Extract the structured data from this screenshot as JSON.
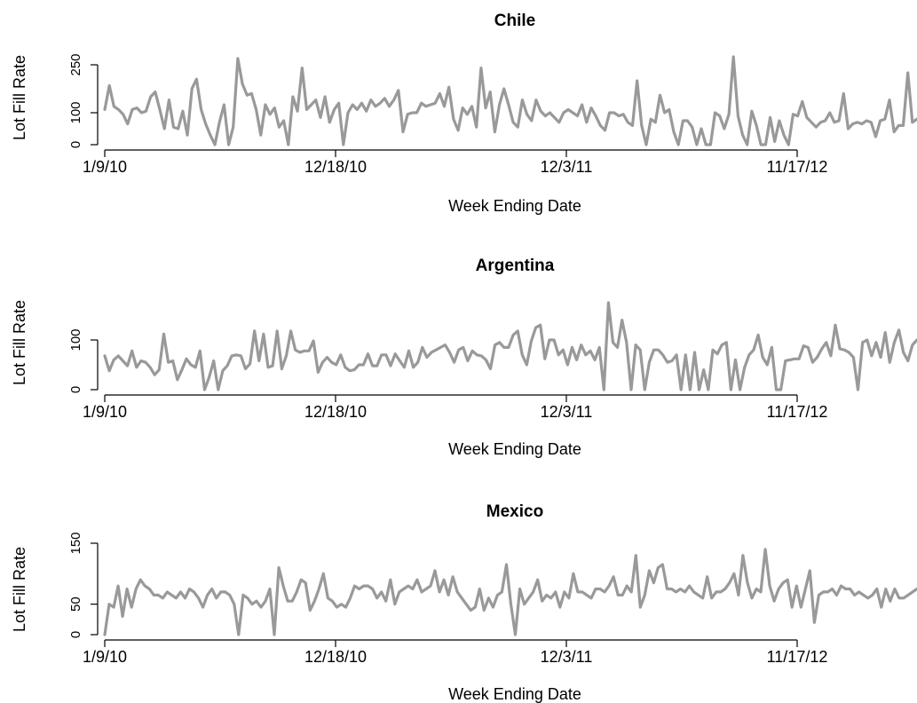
{
  "chart_data": [
    {
      "type": "line",
      "title": "Chile",
      "xlabel": "Week Ending Date",
      "ylabel": "Lot Fill Rate",
      "x_tick_labels": [
        "1/9/10",
        "12/18/10",
        "12/3/11",
        "11/17/12"
      ],
      "y_ticks": [
        0,
        100,
        250
      ],
      "ylim": [
        0,
        250
      ],
      "series": [
        {
          "color": "#999999",
          "values": [
            110,
            185,
            120,
            110,
            95,
            65,
            110,
            115,
            100,
            105,
            150,
            165,
            110,
            50,
            140,
            55,
            50,
            105,
            30,
            175,
            205,
            110,
            65,
            30,
            0,
            70,
            125,
            0,
            55,
            270,
            190,
            155,
            160,
            110,
            30,
            125,
            95,
            115,
            55,
            75,
            0,
            150,
            105,
            240,
            110,
            125,
            140,
            85,
            150,
            70,
            110,
            130,
            0,
            100,
            125,
            110,
            130,
            105,
            140,
            120,
            130,
            145,
            120,
            140,
            170,
            40,
            95,
            100,
            100,
            130,
            120,
            125,
            130,
            160,
            120,
            180,
            80,
            45,
            115,
            95,
            120,
            55,
            240,
            115,
            165,
            40,
            125,
            175,
            125,
            70,
            55,
            140,
            95,
            75,
            140,
            105,
            90,
            100,
            85,
            70,
            100,
            110,
            100,
            90,
            125,
            70,
            115,
            90,
            60,
            45,
            100,
            100,
            90,
            95,
            70,
            60,
            200,
            60,
            0,
            80,
            70,
            155,
            100,
            110,
            40,
            0,
            75,
            75,
            55,
            0,
            50,
            0,
            0,
            100,
            90,
            50,
            95,
            275,
            90,
            30,
            0,
            105,
            60,
            0,
            0,
            85,
            10,
            75,
            30,
            0,
            95,
            90,
            135,
            85,
            70,
            55,
            70,
            75,
            100,
            70,
            75,
            160,
            50,
            65,
            70,
            65,
            75,
            70,
            25,
            75,
            80,
            140,
            40,
            60,
            60,
            225,
            70,
            80
          ]
        }
      ]
    },
    {
      "type": "line",
      "title": "Argentina",
      "xlabel": "Week Ending Date",
      "ylabel": "Lot Fill Rate",
      "x_tick_labels": [
        "1/9/10",
        "12/18/10",
        "12/3/11",
        "11/17/12"
      ],
      "y_ticks": [
        0,
        100
      ],
      "ylim": [
        0,
        150
      ],
      "series": [
        {
          "color": "#999999",
          "values": [
            68,
            38,
            60,
            68,
            58,
            48,
            78,
            45,
            58,
            55,
            45,
            30,
            40,
            112,
            55,
            58,
            20,
            40,
            62,
            50,
            45,
            78,
            0,
            25,
            58,
            0,
            38,
            48,
            68,
            70,
            68,
            42,
            52,
            118,
            58,
            112,
            45,
            48,
            118,
            42,
            68,
            118,
            80,
            75,
            78,
            78,
            98,
            35,
            55,
            65,
            55,
            50,
            70,
            45,
            38,
            40,
            50,
            50,
            72,
            48,
            48,
            70,
            70,
            48,
            72,
            58,
            45,
            78,
            45,
            55,
            85,
            65,
            75,
            80,
            85,
            90,
            75,
            55,
            80,
            85,
            58,
            78,
            70,
            68,
            60,
            42,
            90,
            95,
            85,
            85,
            110,
            118,
            70,
            50,
            98,
            125,
            130,
            62,
            100,
            100,
            70,
            80,
            50,
            85,
            60,
            90,
            70,
            78,
            60,
            85,
            0,
            175,
            95,
            85,
            140,
            95,
            0,
            90,
            80,
            0,
            55,
            80,
            80,
            70,
            55,
            58,
            70,
            0,
            70,
            0,
            75,
            0,
            40,
            0,
            80,
            72,
            90,
            95,
            0,
            60,
            0,
            45,
            70,
            80,
            110,
            65,
            50,
            85,
            0,
            0,
            58,
            60,
            62,
            62,
            88,
            85,
            55,
            65,
            82,
            95,
            68,
            130,
            82,
            80,
            75,
            65,
            0,
            95,
            100,
            68,
            95,
            65,
            115,
            55,
            95,
            120,
            75,
            58,
            90,
            100
          ]
        }
      ]
    },
    {
      "type": "line",
      "title": "Mexico",
      "xlabel": "Week Ending Date",
      "ylabel": "Lot Fill Rate",
      "x_tick_labels": [
        "1/9/10",
        "12/18/10",
        "12/3/11",
        "11/17/12"
      ],
      "y_ticks": [
        0,
        50,
        150
      ],
      "ylim": [
        0,
        150
      ],
      "series": [
        {
          "color": "#999999",
          "values": [
            0,
            50,
            45,
            80,
            30,
            75,
            45,
            75,
            90,
            80,
            75,
            65,
            65,
            60,
            70,
            65,
            60,
            70,
            60,
            75,
            70,
            60,
            45,
            65,
            75,
            60,
            70,
            70,
            65,
            50,
            0,
            65,
            60,
            50,
            55,
            45,
            55,
            75,
            0,
            110,
            80,
            55,
            55,
            70,
            90,
            85,
            40,
            55,
            75,
            100,
            60,
            55,
            45,
            50,
            45,
            60,
            80,
            75,
            80,
            80,
            75,
            60,
            70,
            55,
            90,
            50,
            70,
            75,
            80,
            75,
            90,
            70,
            75,
            80,
            105,
            70,
            90,
            65,
            95,
            70,
            60,
            50,
            40,
            45,
            75,
            40,
            60,
            45,
            65,
            70,
            115,
            50,
            0,
            75,
            50,
            60,
            70,
            90,
            55,
            65,
            60,
            70,
            45,
            70,
            60,
            100,
            70,
            70,
            65,
            60,
            75,
            75,
            70,
            80,
            95,
            65,
            65,
            80,
            70,
            130,
            45,
            65,
            105,
            85,
            110,
            115,
            75,
            75,
            70,
            75,
            70,
            80,
            70,
            65,
            60,
            95,
            60,
            70,
            70,
            75,
            85,
            100,
            65,
            130,
            85,
            60,
            75,
            70,
            140,
            80,
            55,
            75,
            85,
            90,
            45,
            80,
            45,
            75,
            105,
            20,
            65,
            70,
            70,
            75,
            65,
            80,
            75,
            75,
            65,
            70,
            65,
            60,
            65,
            75,
            45,
            75,
            55,
            75,
            60,
            60,
            65,
            70,
            75
          ]
        }
      ]
    }
  ]
}
